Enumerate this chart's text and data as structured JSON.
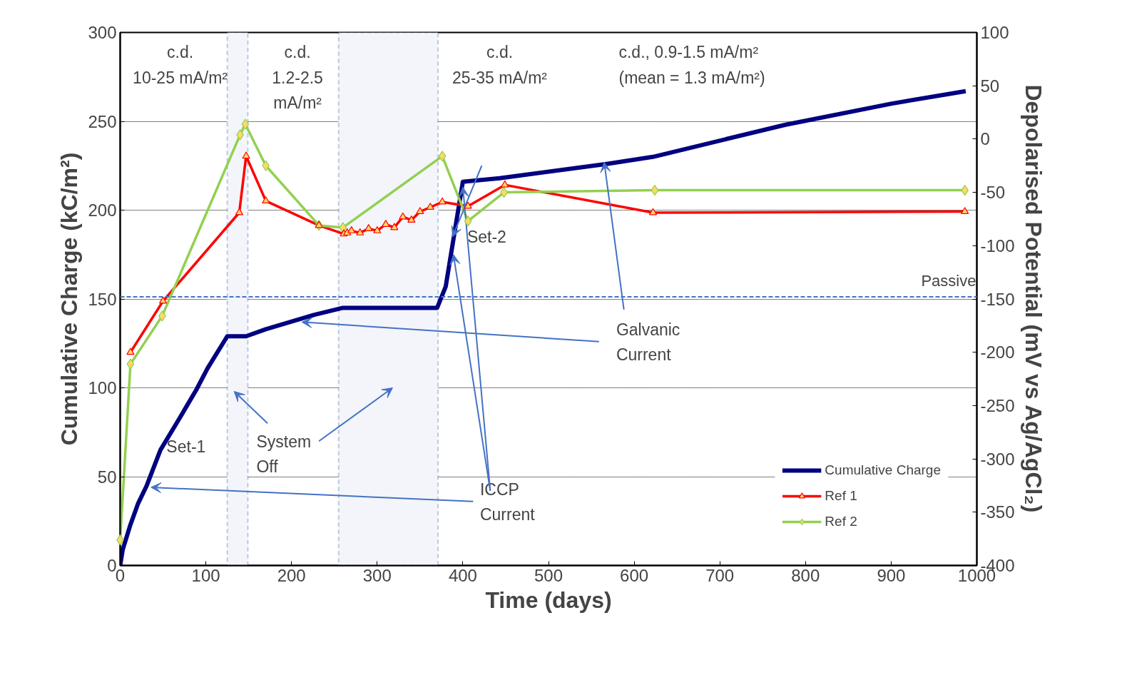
{
  "chart_data": {
    "type": "line",
    "xlabel": "Time (days)",
    "ylabel": "Cumulative Charge (kC/m²)",
    "y2label": "Depolarised Potential (mV vs Ag/AgCl₂)",
    "xlim": [
      0,
      1000
    ],
    "xticks": [
      0,
      100,
      200,
      300,
      400,
      500,
      600,
      700,
      800,
      900,
      1000
    ],
    "ylim": [
      0,
      300
    ],
    "yticks": [
      0,
      50,
      100,
      150,
      200,
      250,
      300
    ],
    "y2lim": [
      -400,
      100
    ],
    "y2ticks": [
      -400,
      -350,
      -300,
      -250,
      -200,
      -150,
      -100,
      -50,
      0,
      50,
      100
    ],
    "grid": "y",
    "legend": "bottom right",
    "series": [
      {
        "name": "Cumulative Charge",
        "color": "#000080",
        "marker": "none",
        "x": [
          0,
          3,
          12,
          21,
          31,
          47,
          67,
          89,
          102,
          125,
          147,
          170,
          226,
          260,
          370,
          380,
          400,
          443,
          568,
          622,
          776,
          901,
          987
        ],
        "values": [
          0,
          9,
          23,
          35,
          45,
          65,
          81,
          99,
          111,
          129,
          129,
          133,
          141,
          145,
          145,
          157,
          216,
          218,
          226,
          230,
          248,
          260,
          267
        ]
      },
      {
        "name": "Ref 1",
        "color": "#ff0000",
        "marker": "triangle",
        "axis": "y2",
        "x": [
          12,
          50,
          139,
          147,
          170,
          232,
          261,
          265,
          270,
          280,
          290,
          300,
          310,
          320,
          330,
          340,
          350,
          362,
          376,
          406,
          449,
          622,
          986
        ],
        "values": [
          -200,
          -152,
          -69,
          -16,
          -58,
          -81,
          -89,
          -88,
          -86,
          -88,
          -84,
          -86,
          -80,
          -83,
          -73,
          -76,
          -68,
          -64,
          -59,
          -63,
          -43,
          -69,
          -68
        ]
      },
      {
        "name": "Ref 2",
        "color": "#92d050",
        "marker": "diamond",
        "axis": "y2",
        "x": [
          0,
          12,
          49,
          140,
          146,
          170,
          232,
          260,
          376,
          406,
          448,
          624,
          986
        ],
        "values": [
          -376,
          -211,
          -166,
          4,
          14,
          -25,
          -81,
          -83,
          -16,
          -77,
          -50,
          -48,
          -48
        ]
      }
    ],
    "bands": [
      {
        "axis": "x",
        "from": 125,
        "to": 149,
        "color": "#f3f5fb"
      },
      {
        "axis": "x",
        "from": 255,
        "to": 371,
        "color": "#f3f5fb"
      }
    ],
    "ref_lines": [
      {
        "axis": "y2",
        "value": -148,
        "label": "Passive",
        "color": "#4472c4",
        "line_style": "dashed"
      }
    ],
    "annotations": [
      "c.d.\n10-25 mA/m²",
      "c.d.\n1.2-2.5\nmA/m²",
      "c.d.\n25-35 mA/m²",
      "c.d., 0.9-1.5 mA/m²\n(mean = 1.3 mA/m²)",
      "Set-1",
      "Set-2",
      "System\nOff",
      {
        "text": "ICCP\nCurrent",
        "x": 36,
        "y": 44
      },
      {
        "text": "Galvanic\nCurrent",
        "x": 212,
        "y": 137
      }
    ]
  }
}
